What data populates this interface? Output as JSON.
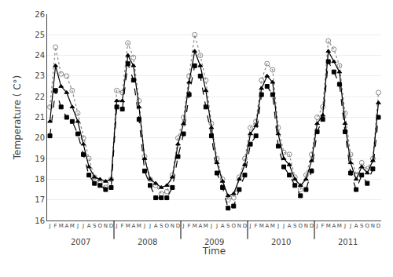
{
  "chart_data": {
    "type": "line",
    "xlabel": "Time",
    "ylabel": "Temperature ( C°)",
    "categories": [
      "J",
      "F",
      "M",
      "A",
      "M",
      "J",
      "J",
      "A",
      "S",
      "O",
      "N",
      "D",
      "J",
      "F",
      "M",
      "A",
      "M",
      "J",
      "J",
      "A",
      "S",
      "O",
      "N",
      "D",
      "J",
      "F",
      "M",
      "A",
      "M",
      "J",
      "J",
      "A",
      "S",
      "O",
      "N",
      "D",
      "J",
      "F",
      "M",
      "A",
      "M",
      "J",
      "J",
      "A",
      "S",
      "O",
      "N",
      "D",
      "J",
      "F",
      "M",
      "A",
      "M",
      "J",
      "J",
      "A",
      "S",
      "O",
      "N",
      "D"
    ],
    "annotations": [
      "2007",
      "2008",
      "2009",
      "2010",
      "2011"
    ],
    "series": [
      {
        "color": "#888888",
        "marker": "circle-open",
        "line_style": "dotted",
        "values": [
          21.5,
          24.4,
          23.1,
          23.0,
          22.3,
          21.2,
          20.0,
          19.0,
          18.1,
          17.8,
          17.6,
          18.0,
          22.3,
          22.2,
          24.6,
          23.9,
          21.8,
          19.1,
          18.0,
          17.7,
          17.3,
          17.4,
          18.2,
          20.0,
          21.0,
          23.0,
          25.0,
          24.0,
          22.8,
          20.7,
          19.0,
          18.0,
          17.0,
          17.1,
          18.1,
          19.0,
          20.5,
          20.8,
          22.8,
          23.6,
          23.3,
          20.5,
          19.3,
          19.2,
          18.1,
          17.5,
          18.2,
          19.2,
          21.0,
          21.5,
          24.7,
          24.3,
          23.5,
          21.2,
          19.2,
          18.2,
          18.8,
          18.5,
          19.0,
          22.2
        ]
      },
      {
        "color": "#000000",
        "marker": "triangle-up",
        "line_style": "solid",
        "values": [
          20.8,
          23.5,
          22.5,
          22.2,
          21.5,
          20.8,
          19.7,
          18.6,
          18.1,
          18.0,
          17.9,
          18.0,
          21.8,
          21.8,
          24.0,
          23.5,
          21.5,
          19.0,
          18.0,
          17.8,
          17.6,
          17.7,
          18.1,
          19.7,
          20.7,
          22.7,
          24.2,
          23.5,
          22.3,
          20.5,
          18.8,
          17.9,
          17.2,
          17.3,
          18.0,
          18.7,
          20.2,
          20.6,
          22.4,
          23.0,
          22.7,
          20.2,
          19.0,
          18.7,
          18.0,
          17.7,
          18.0,
          18.9,
          20.7,
          21.1,
          24.2,
          23.7,
          23.2,
          20.7,
          18.8,
          18.0,
          18.6,
          18.3,
          18.9,
          21.7
        ]
      },
      {
        "color": "#000000",
        "marker": "square",
        "line_style": "dashed",
        "values": [
          20.1,
          22.3,
          21.5,
          21.0,
          20.8,
          20.2,
          19.2,
          18.2,
          17.8,
          17.7,
          17.5,
          17.6,
          21.5,
          21.4,
          23.6,
          22.8,
          20.9,
          18.4,
          17.7,
          17.1,
          17.1,
          17.1,
          17.6,
          19.1,
          20.2,
          22.1,
          23.5,
          23.0,
          21.5,
          20.1,
          18.3,
          17.6,
          16.6,
          16.7,
          17.5,
          18.2,
          19.7,
          20.1,
          22.1,
          22.5,
          22.1,
          19.6,
          18.6,
          18.2,
          17.7,
          17.2,
          17.5,
          18.4,
          20.3,
          20.9,
          23.7,
          23.2,
          22.6,
          20.3,
          18.3,
          17.5,
          18.2,
          17.8,
          18.5,
          21.0
        ]
      }
    ],
    "ylim": [
      16,
      26
    ],
    "yticks": [
      16,
      17,
      18,
      19,
      20,
      21,
      22,
      23,
      24,
      25,
      26
    ],
    "grid": "y"
  }
}
